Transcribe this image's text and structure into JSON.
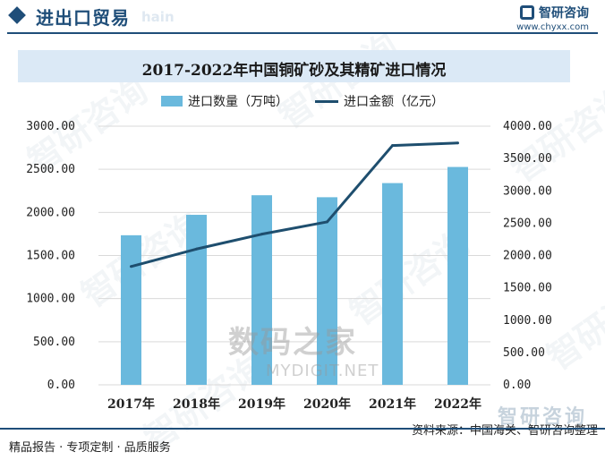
{
  "header": {
    "section_title": "进出口贸易",
    "ghost_word": "hain",
    "brand_name": "智研咨询",
    "brand_url": "www.chyxx.com"
  },
  "watermarks": {
    "brand_text": "智研咨询",
    "site_name": "数码之家",
    "site_url": "MYDIGIT.NET"
  },
  "chart_data": {
    "type": "bar",
    "title": "2017-2022年中国铜矿砂及其精矿进口情况",
    "categories": [
      "2017年",
      "2018年",
      "2019年",
      "2020年",
      "2021年",
      "2022年"
    ],
    "series": [
      {
        "name": "进口数量（万吨）",
        "type": "bar",
        "axis": "left",
        "color": "#6ab9dd",
        "values": [
          1735,
          1972,
          2199,
          2176,
          2340,
          2527
        ]
      },
      {
        "name": "进口金额（亿元）",
        "type": "line",
        "axis": "right",
        "color": "#1e4e6e",
        "values": [
          1830,
          2100,
          2330,
          2520,
          3700,
          3740
        ]
      }
    ],
    "left_axis": {
      "ylim": [
        0,
        3000
      ],
      "ticks": [
        "0.00",
        "500.00",
        "1000.00",
        "1500.00",
        "2000.00",
        "2500.00",
        "3000.00"
      ]
    },
    "right_axis": {
      "ylim": [
        0,
        4000
      ],
      "ticks": [
        "0.00",
        "500.00",
        "1000.00",
        "1500.00",
        "2000.00",
        "2500.00",
        "3000.00",
        "3500.00",
        "4000.00"
      ]
    },
    "grid": true,
    "legend_position": "top-center"
  },
  "footer": {
    "left_text": "精品报告 · 专项定制 · 品质服务",
    "source_text": "资料来源：中国海关、智研咨询整理"
  }
}
